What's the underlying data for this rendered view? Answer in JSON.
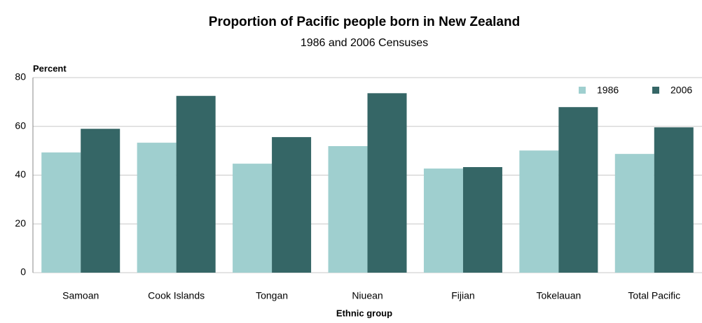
{
  "chart_data": {
    "type": "bar",
    "title": "Proportion of Pacific people born in New Zealand",
    "subtitle": "1986 and 2006 Censuses",
    "y_label": "Percent",
    "x_label": "Ethnic group",
    "categories": [
      "Samoan",
      "Cook Islands",
      "Tongan",
      "Niuean",
      "Fijian",
      "Tokelauan",
      "Total Pacific"
    ],
    "series": [
      {
        "name": "1986",
        "color": "#9fcfcf",
        "values": [
          49.3,
          53.3,
          44.7,
          51.9,
          42.7,
          50.1,
          48.7
        ]
      },
      {
        "name": "2006",
        "color": "#356666",
        "values": [
          59.0,
          72.5,
          55.6,
          73.6,
          43.3,
          67.9,
          59.6
        ]
      }
    ],
    "ylim": [
      0,
      80
    ],
    "yticks": [
      0,
      20,
      40,
      60,
      80
    ],
    "grid": true,
    "legend": "top-right"
  }
}
